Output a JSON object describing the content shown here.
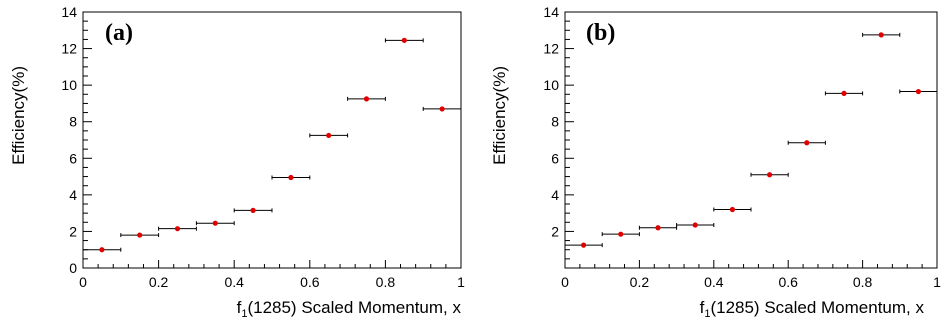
{
  "chart_data": [
    {
      "type": "scatter",
      "panel_label": "(a)",
      "xlabel_main": "f",
      "xlabel_sub": "1",
      "xlabel_rest": "(1285) Scaled Momentum, x",
      "ylabel": "Efficiency(%)",
      "xlim": [
        0,
        1
      ],
      "ylim": [
        0,
        14
      ],
      "x_ticks": [
        0,
        0.2,
        0.4,
        0.6,
        0.8,
        1
      ],
      "y_ticks": [
        0,
        2,
        4,
        6,
        8,
        10,
        12,
        14
      ],
      "x_tick_labels": [
        "0",
        "0.2",
        "0.4",
        "0.6",
        "0.8",
        "1"
      ],
      "y_tick_labels": [
        "0",
        "2",
        "4",
        "6",
        "8",
        "10",
        "12",
        "14"
      ],
      "marker_color": "#e00000",
      "errorbar_color": "#000000",
      "points": [
        {
          "x": 0.05,
          "y": 1.0,
          "xerr": 0.05
        },
        {
          "x": 0.15,
          "y": 1.8,
          "xerr": 0.05
        },
        {
          "x": 0.25,
          "y": 2.15,
          "xerr": 0.05
        },
        {
          "x": 0.35,
          "y": 2.45,
          "xerr": 0.05
        },
        {
          "x": 0.45,
          "y": 3.15,
          "xerr": 0.05
        },
        {
          "x": 0.55,
          "y": 4.95,
          "xerr": 0.05
        },
        {
          "x": 0.65,
          "y": 7.25,
          "xerr": 0.05
        },
        {
          "x": 0.75,
          "y": 9.25,
          "xerr": 0.05
        },
        {
          "x": 0.85,
          "y": 12.45,
          "xerr": 0.05
        },
        {
          "x": 0.95,
          "y": 8.7,
          "xerr": 0.05
        }
      ]
    },
    {
      "type": "scatter",
      "panel_label": "(b)",
      "xlabel_main": "f",
      "xlabel_sub": "1",
      "xlabel_rest": "(1285) Scaled Momentum, x",
      "ylabel": "Efficiency(%)",
      "xlim": [
        0,
        1
      ],
      "ylim": [
        0,
        14
      ],
      "x_ticks": [
        0,
        0.2,
        0.4,
        0.6,
        0.8,
        1
      ],
      "y_ticks": [
        2,
        4,
        6,
        8,
        10,
        12,
        14
      ],
      "x_tick_labels": [
        "0",
        "0.2",
        "0.4",
        "0.6",
        "0.8",
        "1"
      ],
      "y_tick_labels": [
        "2",
        "4",
        "6",
        "8",
        "10",
        "12",
        "14"
      ],
      "marker_color": "#e00000",
      "errorbar_color": "#000000",
      "points": [
        {
          "x": 0.05,
          "y": 1.25,
          "xerr": 0.05
        },
        {
          "x": 0.15,
          "y": 1.85,
          "xerr": 0.05
        },
        {
          "x": 0.25,
          "y": 2.2,
          "xerr": 0.05
        },
        {
          "x": 0.35,
          "y": 2.35,
          "xerr": 0.05
        },
        {
          "x": 0.45,
          "y": 3.2,
          "xerr": 0.05
        },
        {
          "x": 0.55,
          "y": 5.1,
          "xerr": 0.05
        },
        {
          "x": 0.65,
          "y": 6.85,
          "xerr": 0.05
        },
        {
          "x": 0.75,
          "y": 9.55,
          "xerr": 0.05
        },
        {
          "x": 0.85,
          "y": 12.75,
          "xerr": 0.05
        },
        {
          "x": 0.95,
          "y": 9.65,
          "xerr": 0.05
        }
      ]
    }
  ]
}
